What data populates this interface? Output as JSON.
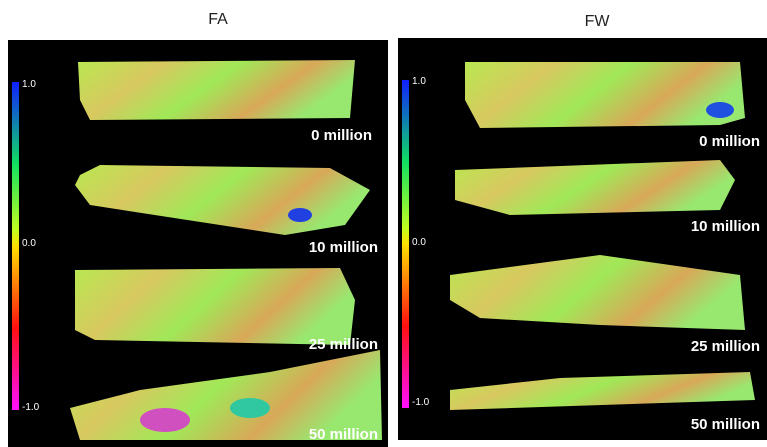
{
  "panels": [
    {
      "title": "FA",
      "colorbar": {
        "max": "1.0",
        "mid": "0.0",
        "min": "-1.0"
      },
      "samples": [
        {
          "label": "0 million"
        },
        {
          "label": "10 million"
        },
        {
          "label": "25 million"
        },
        {
          "label": "50 million"
        }
      ]
    },
    {
      "title": "FW",
      "colorbar": {
        "max": "1.0",
        "mid": "0.0",
        "min": "-1.0"
      },
      "samples": [
        {
          "label": "0 million"
        },
        {
          "label": "10 million"
        },
        {
          "label": "25 million"
        },
        {
          "label": "50 million"
        }
      ]
    }
  ]
}
